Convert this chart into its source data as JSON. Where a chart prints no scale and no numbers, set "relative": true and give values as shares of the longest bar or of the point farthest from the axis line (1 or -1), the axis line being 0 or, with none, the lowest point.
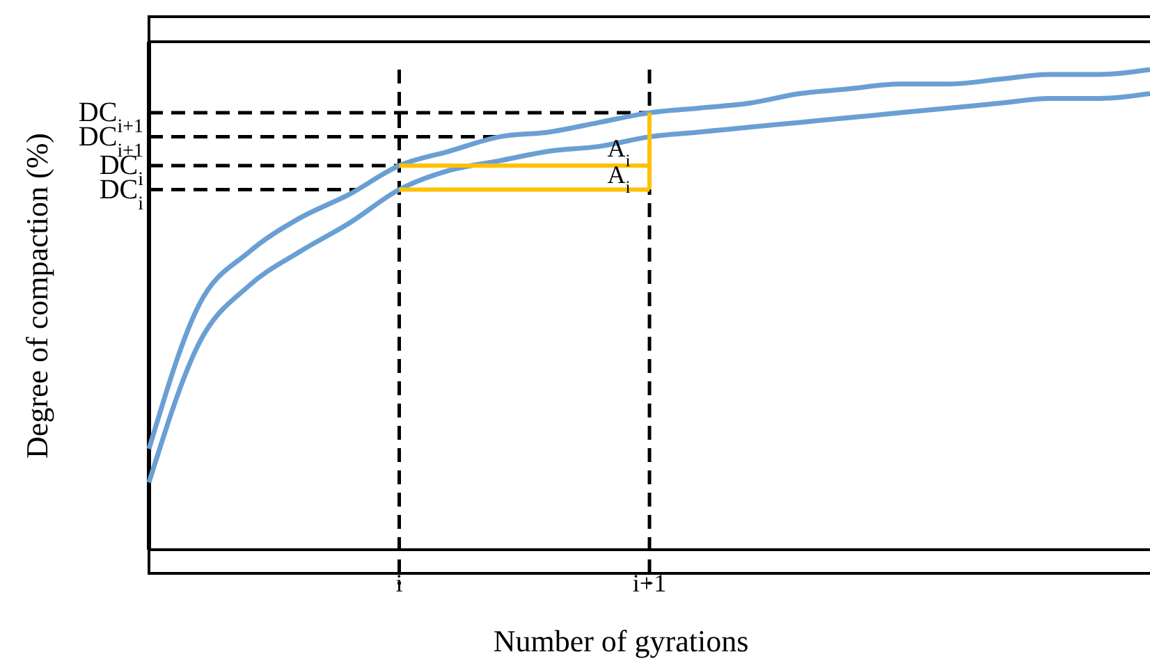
{
  "chart_data": {
    "type": "line",
    "relative": true,
    "xlabel": "Number of gyrations",
    "ylabel": "Degree of compaction (%)",
    "categories": [
      null,
      null,
      null,
      null,
      null,
      "i",
      null,
      null,
      null,
      null,
      "i+1",
      null,
      null,
      null,
      null,
      null,
      null,
      null,
      null,
      null,
      null
    ],
    "series": [
      {
        "color": "#6a9fd4",
        "values": [
          0.21,
          0.51,
          0.62,
          0.69,
          0.74,
          0.8,
          0.83,
          0.86,
          0.87,
          0.89,
          0.91,
          0.92,
          0.93,
          0.95,
          0.96,
          0.97,
          0.97,
          0.98,
          0.99,
          0.99,
          1
        ]
      },
      {
        "color": "#6a9fd4",
        "values": [
          0.14,
          0.43,
          0.55,
          0.62,
          0.68,
          0.75,
          0.79,
          0.81,
          0.83,
          0.84,
          0.86,
          0.87,
          0.88,
          0.89,
          0.9,
          0.91,
          0.92,
          0.93,
          0.94,
          0.94,
          0.95
        ]
      }
    ],
    "ref_lines": [
      {
        "axis": "y",
        "value": 0.91,
        "label": "DC$_{i+1}$",
        "color": "#000000",
        "line_style": "dashed"
      },
      {
        "axis": "y",
        "value": 0.86,
        "label": "DC$_{i+1}$",
        "color": "#000000",
        "line_style": "dashed"
      },
      {
        "axis": "y",
        "value": 0.8,
        "label": "DC$_{i}$",
        "color": "#000000",
        "line_style": "dashed"
      },
      {
        "axis": "y",
        "value": 0.75,
        "label": "DC$_{i}$",
        "color": "#000000",
        "line_style": "dashed"
      }
    ],
    "annotations": [
      "A$_{i}$",
      "A$_{i}$"
    ],
    "line_style": "solid",
    "grid": "x"
  }
}
